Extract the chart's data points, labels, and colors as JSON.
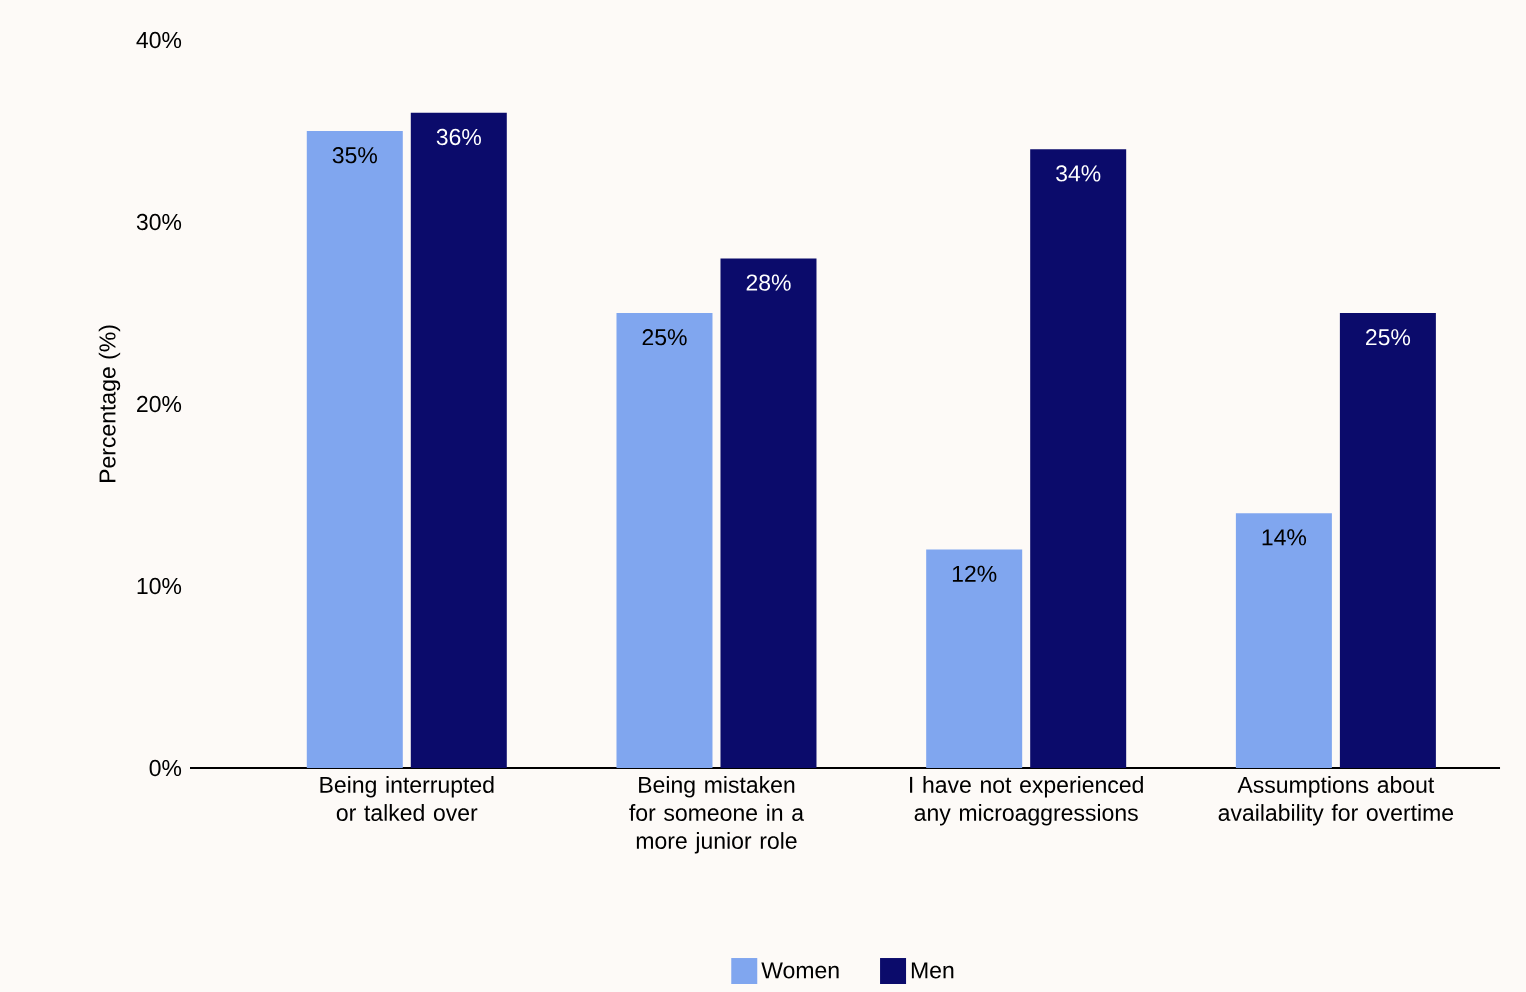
{
  "chart_data": {
    "type": "bar",
    "ylabel": "Percentage (%)",
    "categories": [
      "Being interrupted or talked over",
      "Being mistaken for someone in a more junior role",
      "I have not experienced any microaggressions",
      "Assumptions about availability for overtime"
    ],
    "series": [
      {
        "name": "Women",
        "color": "#80a6ef",
        "values": [
          35,
          25,
          12,
          14
        ],
        "value_labels": [
          "35%",
          "25%",
          "12%",
          "14%"
        ]
      },
      {
        "name": "Men",
        "color": "#0b0b6b",
        "values": [
          36,
          28,
          34,
          25
        ],
        "value_labels": [
          "36%",
          "28%",
          "34%",
          "25%"
        ]
      }
    ],
    "ylim": [
      0,
      40
    ],
    "yticks": [
      {
        "value": 0,
        "label": "0%"
      },
      {
        "value": 10,
        "label": "10%"
      },
      {
        "value": 20,
        "label": "20%"
      },
      {
        "value": 30,
        "label": "30%"
      },
      {
        "value": 40,
        "label": "40%"
      }
    ],
    "grid": false,
    "legend": "bottom"
  }
}
